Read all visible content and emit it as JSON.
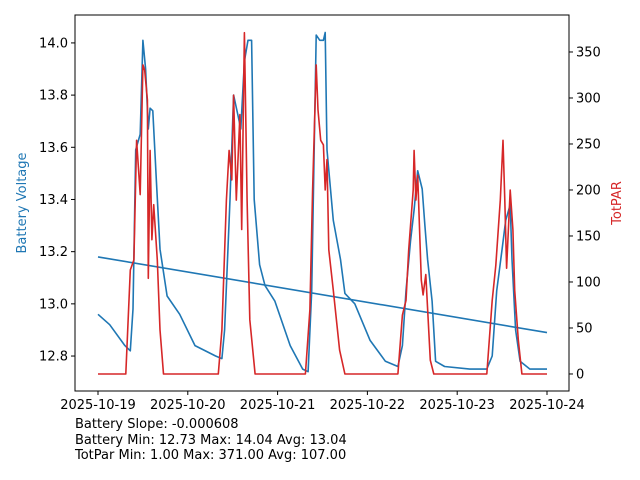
{
  "chart_data": {
    "type": "line",
    "x_start_date": "2025-10-19",
    "x_unit": "days since 2025-10-19",
    "xlim": [
      -0.256,
      5.245
    ],
    "x_ticks": [
      0,
      1,
      2,
      3,
      4,
      5
    ],
    "x_tick_labels": [
      "2025-10-19",
      "2025-10-20",
      "2025-10-21",
      "2025-10-22",
      "2025-10-23",
      "2025-10-24"
    ],
    "left_axis": {
      "label": "Battery Voltage",
      "color": "#1f77b4",
      "ylim": [
        12.666,
        14.107
      ],
      "ticks": [
        12.8,
        13.0,
        13.2,
        13.4,
        13.6,
        13.8,
        14.0
      ],
      "tick_labels": [
        "12.8",
        "13.0",
        "13.2",
        "13.4",
        "13.6",
        "13.8",
        "14.0"
      ]
    },
    "right_axis": {
      "label": "TotPAR",
      "color": "#d62728",
      "ylim": [
        -18.5,
        390.2
      ],
      "ticks": [
        0,
        50,
        100,
        150,
        200,
        250,
        300,
        350
      ],
      "tick_labels": [
        "0",
        "50",
        "100",
        "150",
        "200",
        "250",
        "300",
        "350"
      ]
    },
    "series": [
      {
        "name": "Battery Voltage",
        "axis": "left",
        "color": "#1f77b4",
        "x": [
          0,
          0.13,
          0.3,
          0.36,
          0.39,
          0.42,
          0.47,
          0.5,
          0.53,
          0.56,
          0.58,
          0.61,
          0.65,
          0.69,
          0.77,
          0.91,
          1.08,
          1.31,
          1.38,
          1.41,
          1.47,
          1.51,
          1.56,
          1.59,
          1.63,
          1.67,
          1.71,
          1.74,
          1.8,
          1.86,
          1.97,
          2.14,
          2.28,
          2.34,
          2.38,
          2.43,
          2.47,
          2.51,
          2.53,
          2.55,
          2.62,
          2.7,
          2.75,
          2.86,
          3.03,
          3.2,
          3.34,
          3.39,
          3.43,
          3.48,
          3.52,
          3.56,
          3.61,
          3.64,
          3.67,
          3.72,
          3.76,
          3.86,
          4.14,
          4.33,
          4.39,
          4.44,
          4.5,
          4.54,
          4.59,
          4.61,
          4.65,
          4.7,
          4.81,
          5.0
        ],
        "y": [
          12.96,
          12.92,
          12.84,
          12.82,
          12.98,
          13.59,
          13.65,
          14.01,
          13.9,
          13.67,
          13.75,
          13.74,
          13.47,
          13.21,
          13.03,
          12.96,
          12.84,
          12.8,
          12.79,
          12.9,
          13.4,
          13.8,
          13.72,
          13.67,
          13.93,
          14.01,
          14.01,
          13.4,
          13.15,
          13.07,
          13.01,
          12.84,
          12.75,
          12.74,
          13.05,
          14.03,
          14.01,
          14.01,
          14.04,
          13.59,
          13.32,
          13.17,
          13.04,
          13.0,
          12.86,
          12.78,
          12.76,
          12.84,
          13.05,
          13.24,
          13.36,
          13.51,
          13.44,
          13.3,
          13.17,
          13.01,
          12.78,
          12.76,
          12.75,
          12.75,
          12.8,
          13.05,
          13.21,
          13.32,
          13.38,
          13.17,
          12.9,
          12.78,
          12.75,
          12.75
        ]
      },
      {
        "name": "Battery Trend",
        "axis": "left",
        "color": "#1f77b4",
        "x": [
          0,
          5
        ],
        "y": [
          13.18,
          12.89
        ]
      },
      {
        "name": "TotPAR",
        "axis": "right",
        "color": "#d62728",
        "x": [
          0,
          0.31,
          0.36,
          0.4,
          0.43,
          0.47,
          0.5,
          0.52,
          0.55,
          0.56,
          0.58,
          0.6,
          0.62,
          0.66,
          0.69,
          0.73,
          1.34,
          1.38,
          1.43,
          1.46,
          1.49,
          1.51,
          1.54,
          1.58,
          1.6,
          1.63,
          1.66,
          1.69,
          1.75,
          2.31,
          2.36,
          2.39,
          2.43,
          2.45,
          2.48,
          2.51,
          2.53,
          2.55,
          2.57,
          2.62,
          2.69,
          2.75,
          3.34,
          3.39,
          3.43,
          3.46,
          3.51,
          3.52,
          3.54,
          3.56,
          3.6,
          3.62,
          3.65,
          3.7,
          3.74,
          4.33,
          4.39,
          4.43,
          4.48,
          4.51,
          4.53,
          4.55,
          4.59,
          4.62,
          4.64,
          4.68,
          4.72,
          5.0
        ],
        "y": [
          0,
          0,
          113,
          124,
          254,
          195,
          336,
          330,
          298,
          104,
          243,
          146,
          184,
          124,
          48,
          0,
          0,
          48,
          189,
          243,
          211,
          303,
          189,
          282,
          157,
          371,
          189,
          59,
          0,
          0,
          70,
          200,
          336,
          287,
          254,
          249,
          200,
          233,
          135,
          91,
          26,
          0,
          0,
          64,
          80,
          135,
          200,
          243,
          189,
          216,
          102,
          86,
          108,
          15,
          0,
          0,
          80,
          118,
          189,
          254,
          189,
          115,
          200,
          157,
          91,
          37,
          0,
          0
        ]
      }
    ],
    "annotations": [
      "Battery Slope: -0.000608",
      "Battery Min: 12.73 Max: 14.04 Avg: 13.04",
      "TotPar Min: 1.00 Max: 371.00 Avg: 107.00"
    ]
  }
}
